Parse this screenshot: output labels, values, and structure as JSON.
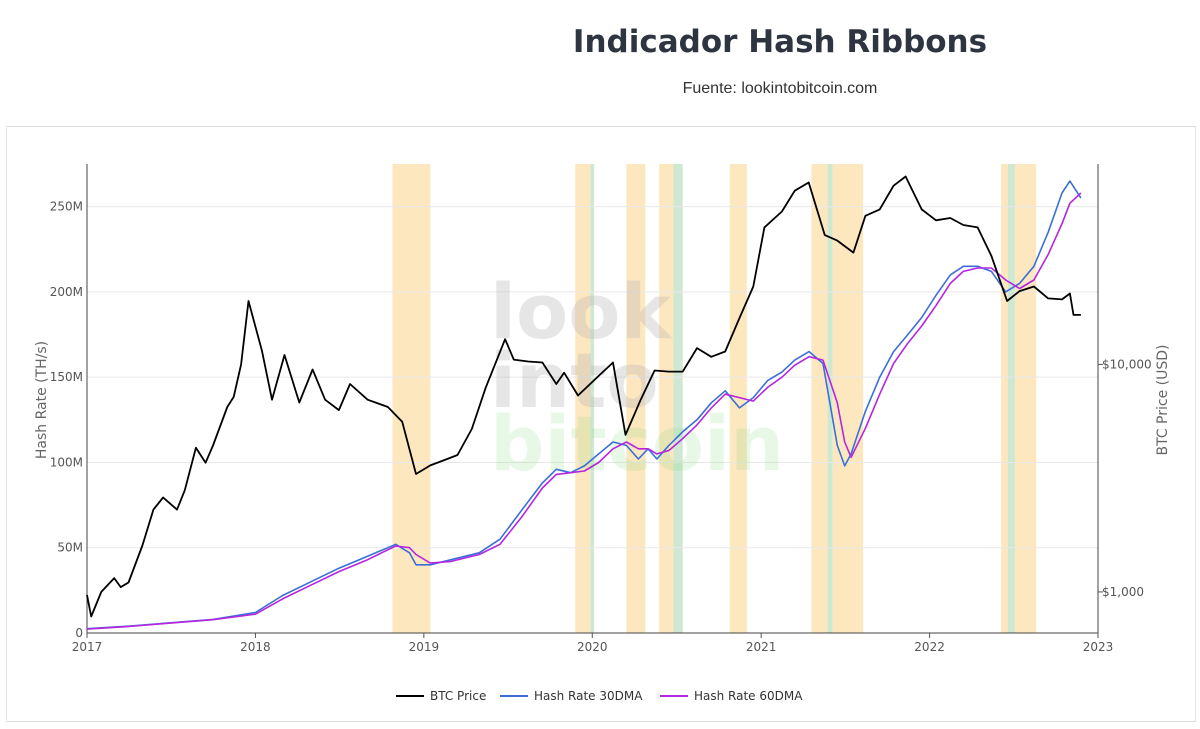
{
  "header": {
    "title": "Indicador Hash Ribbons",
    "subtitle": "Fuente: lookintobitcoin.com"
  },
  "watermark": [
    "look",
    "into",
    "bitcoin"
  ],
  "colors": {
    "btc_price": "#000000",
    "hash_30dma": "#3b6fd6",
    "hash_60dma": "#b526e0",
    "capitulation_band": "#fde7bf",
    "recovery_band": "#cfe8d2",
    "grid": "#e8e8e8"
  },
  "chart_data": {
    "type": "line",
    "x_axis": {
      "range": [
        "2017-01-01",
        "2023-01-01"
      ],
      "ticks": [
        "2017",
        "2018",
        "2019",
        "2020",
        "2021",
        "2022",
        "2023"
      ]
    },
    "y_axis_left": {
      "label": "Hash Rate (TH/s)",
      "range": [
        0,
        275000000
      ],
      "ticks": [
        "0",
        "50M",
        "100M",
        "150M",
        "200M",
        "250M"
      ]
    },
    "y_axis_right": {
      "label": "BTC Price (USD)",
      "scale": "log",
      "range": [
        660,
        76000
      ],
      "ticks": [
        "$1,000",
        "$10,000"
      ]
    },
    "legend": {
      "position": "bottom-center",
      "entries": [
        "BTC Price",
        "Hash Rate 30DMA",
        "Hash Rate 60DMA"
      ]
    },
    "bands": [
      {
        "type": "capitulation",
        "start": "2018-10-25",
        "end": "2019-01-15"
      },
      {
        "type": "capitulation",
        "start": "2019-11-25",
        "end": "2019-12-28"
      },
      {
        "type": "recovery",
        "start": "2019-12-28",
        "end": "2020-01-05"
      },
      {
        "type": "capitulation",
        "start": "2020-03-15",
        "end": "2020-04-25"
      },
      {
        "type": "capitulation",
        "start": "2020-05-25",
        "end": "2020-06-25"
      },
      {
        "type": "recovery",
        "start": "2020-06-25",
        "end": "2020-07-15"
      },
      {
        "type": "capitulation",
        "start": "2020-10-25",
        "end": "2020-12-01"
      },
      {
        "type": "capitulation",
        "start": "2021-04-20",
        "end": "2021-05-25"
      },
      {
        "type": "recovery",
        "start": "2021-05-25",
        "end": "2021-06-05"
      },
      {
        "type": "capitulation",
        "start": "2021-06-05",
        "end": "2021-08-10"
      },
      {
        "type": "capitulation",
        "start": "2022-06-05",
        "end": "2022-06-20"
      },
      {
        "type": "recovery",
        "start": "2022-06-20",
        "end": "2022-07-05"
      },
      {
        "type": "capitulation",
        "start": "2022-07-05",
        "end": "2022-08-20"
      }
    ],
    "series": [
      {
        "name": "BTC Price",
        "axis": "right",
        "x": [
          "2017-01-01",
          "2017-01-10",
          "2017-02-01",
          "2017-03-01",
          "2017-03-15",
          "2017-04-01",
          "2017-05-01",
          "2017-05-25",
          "2017-06-15",
          "2017-07-15",
          "2017-08-01",
          "2017-08-25",
          "2017-09-15",
          "2017-10-01",
          "2017-11-01",
          "2017-11-15",
          "2017-12-01",
          "2017-12-17",
          "2018-01-15",
          "2018-02-06",
          "2018-03-05",
          "2018-04-06",
          "2018-05-05",
          "2018-06-01",
          "2018-07-01",
          "2018-07-25",
          "2018-09-01",
          "2018-10-15",
          "2018-11-15",
          "2018-12-15",
          "2019-01-15",
          "2019-02-15",
          "2019-03-15",
          "2019-04-15",
          "2019-05-15",
          "2019-06-26",
          "2019-07-15",
          "2019-08-15",
          "2019-09-15",
          "2019-10-15",
          "2019-11-01",
          "2019-12-01",
          "2020-01-15",
          "2020-02-15",
          "2020-03-13",
          "2020-04-15",
          "2020-05-15",
          "2020-06-15",
          "2020-07-15",
          "2020-08-15",
          "2020-09-15",
          "2020-10-15",
          "2020-11-15",
          "2020-12-15",
          "2021-01-08",
          "2021-02-15",
          "2021-03-15",
          "2021-04-14",
          "2021-05-19",
          "2021-06-15",
          "2021-07-20",
          "2021-08-15",
          "2021-09-15",
          "2021-10-15",
          "2021-11-10",
          "2021-12-15",
          "2022-01-15",
          "2022-02-15",
          "2022-03-15",
          "2022-04-15",
          "2022-05-15",
          "2022-06-18",
          "2022-07-15",
          "2022-08-15",
          "2022-09-15",
          "2022-10-15",
          "2022-11-01",
          "2022-11-09",
          "2022-11-25"
        ],
        "values": [
          970,
          780,
          1000,
          1150,
          1050,
          1100,
          1600,
          2300,
          2600,
          2300,
          2800,
          4300,
          3700,
          4400,
          6500,
          7200,
          10000,
          19000,
          11500,
          7000,
          11000,
          6800,
          9500,
          7000,
          6300,
          8200,
          7000,
          6500,
          5600,
          3300,
          3600,
          3800,
          4000,
          5200,
          7900,
          12900,
          10500,
          10300,
          10200,
          8200,
          9200,
          7300,
          8900,
          10200,
          4900,
          7000,
          9400,
          9300,
          9300,
          11800,
          10800,
          11400,
          16000,
          22000,
          40000,
          47000,
          58000,
          63000,
          37000,
          35000,
          31000,
          45000,
          48000,
          61000,
          67000,
          48000,
          43000,
          44000,
          41000,
          40000,
          30000,
          19000,
          21000,
          22000,
          19500,
          19300,
          20500,
          16500,
          16500
        ]
      },
      {
        "name": "Hash Rate 30DMA",
        "axis": "left",
        "x": [
          "2017-01-01",
          "2017-04-01",
          "2017-07-01",
          "2017-10-01",
          "2018-01-01",
          "2018-03-01",
          "2018-05-01",
          "2018-07-01",
          "2018-09-01",
          "2018-11-01",
          "2018-12-01",
          "2018-12-15",
          "2019-01-15",
          "2019-03-01",
          "2019-05-01",
          "2019-06-15",
          "2019-08-01",
          "2019-09-15",
          "2019-10-15",
          "2019-11-15",
          "2019-12-15",
          "2020-01-15",
          "2020-02-15",
          "2020-03-15",
          "2020-04-10",
          "2020-05-01",
          "2020-05-20",
          "2020-06-15",
          "2020-07-15",
          "2020-08-15",
          "2020-09-15",
          "2020-10-15",
          "2020-11-15",
          "2020-12-15",
          "2021-01-15",
          "2021-02-15",
          "2021-03-15",
          "2021-04-15",
          "2021-05-15",
          "2021-06-15",
          "2021-07-01",
          "2021-07-15",
          "2021-08-15",
          "2021-09-15",
          "2021-10-15",
          "2021-11-15",
          "2021-12-15",
          "2022-01-15",
          "2022-02-15",
          "2022-03-15",
          "2022-04-15",
          "2022-05-15",
          "2022-06-15",
          "2022-07-15",
          "2022-08-15",
          "2022-09-15",
          "2022-10-15",
          "2022-11-01",
          "2022-11-25"
        ],
        "values": [
          2500000,
          4000000,
          6000000,
          8000000,
          12000000,
          22000000,
          30000000,
          38000000,
          45000000,
          52000000,
          47000000,
          40000000,
          40000000,
          43000000,
          47000000,
          55000000,
          72000000,
          88000000,
          96000000,
          94000000,
          98000000,
          105000000,
          112000000,
          110000000,
          102000000,
          108000000,
          102000000,
          110000000,
          118000000,
          125000000,
          135000000,
          142000000,
          132000000,
          138000000,
          148000000,
          153000000,
          160000000,
          165000000,
          158000000,
          110000000,
          98000000,
          105000000,
          130000000,
          150000000,
          165000000,
          175000000,
          185000000,
          198000000,
          210000000,
          215000000,
          215000000,
          212000000,
          200000000,
          205000000,
          215000000,
          235000000,
          258000000,
          265000000,
          255000000
        ]
      },
      {
        "name": "Hash Rate 60DMA",
        "axis": "left",
        "x": [
          "2017-01-01",
          "2017-04-01",
          "2017-07-01",
          "2017-10-01",
          "2018-01-01",
          "2018-03-01",
          "2018-05-01",
          "2018-07-01",
          "2018-09-01",
          "2018-11-01",
          "2018-12-01",
          "2018-12-15",
          "2019-01-15",
          "2019-03-01",
          "2019-05-01",
          "2019-06-15",
          "2019-08-01",
          "2019-09-15",
          "2019-10-15",
          "2019-11-15",
          "2019-12-15",
          "2020-01-15",
          "2020-02-15",
          "2020-03-15",
          "2020-04-10",
          "2020-05-01",
          "2020-05-20",
          "2020-06-15",
          "2020-07-15",
          "2020-08-15",
          "2020-09-15",
          "2020-10-15",
          "2020-11-15",
          "2020-12-15",
          "2021-01-15",
          "2021-02-15",
          "2021-03-15",
          "2021-04-15",
          "2021-05-15",
          "2021-06-15",
          "2021-07-01",
          "2021-07-15",
          "2021-08-15",
          "2021-09-15",
          "2021-10-15",
          "2021-11-15",
          "2021-12-15",
          "2022-01-15",
          "2022-02-15",
          "2022-03-15",
          "2022-04-15",
          "2022-05-15",
          "2022-06-15",
          "2022-07-15",
          "2022-08-15",
          "2022-09-15",
          "2022-10-15",
          "2022-11-01",
          "2022-11-25"
        ],
        "values": [
          2300000,
          3800000,
          5800000,
          7800000,
          11000000,
          20000000,
          28000000,
          36000000,
          43000000,
          51000000,
          50000000,
          46000000,
          41000000,
          42000000,
          46000000,
          52000000,
          68000000,
          85000000,
          93000000,
          94000000,
          95000000,
          100000000,
          108000000,
          112000000,
          108000000,
          108000000,
          105000000,
          107000000,
          114000000,
          122000000,
          132000000,
          140000000,
          138000000,
          136000000,
          144000000,
          150000000,
          157000000,
          162000000,
          160000000,
          135000000,
          112000000,
          103000000,
          120000000,
          140000000,
          158000000,
          170000000,
          180000000,
          192000000,
          205000000,
          212000000,
          214000000,
          214000000,
          207000000,
          202000000,
          207000000,
          222000000,
          240000000,
          252000000,
          258000000
        ]
      }
    ]
  }
}
